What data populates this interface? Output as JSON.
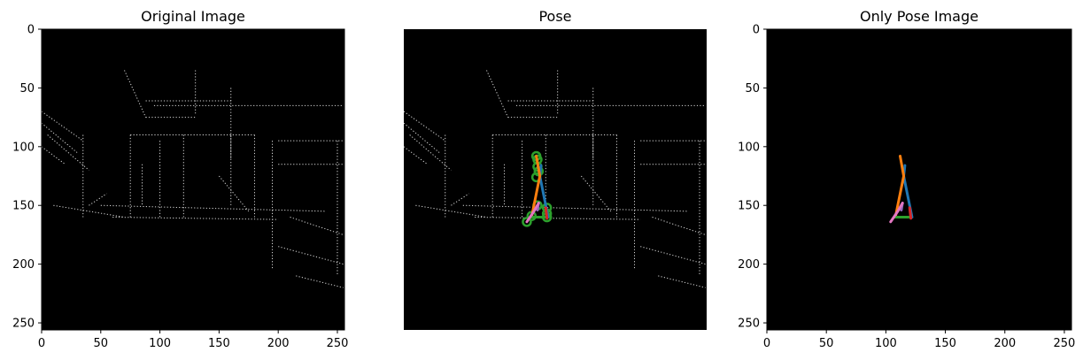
{
  "chart_data": [
    {
      "type": "image",
      "title": "Original Image",
      "xlim": [
        0,
        256
      ],
      "ylim": [
        256,
        0
      ],
      "xticks": [
        0,
        50,
        100,
        150,
        200,
        250
      ],
      "yticks": [
        0,
        50,
        100,
        150,
        200,
        250
      ],
      "show_axes": true,
      "background": "#000000",
      "image_content": "sparse white edge-detection lines on black",
      "pose_overlay": false
    },
    {
      "type": "image",
      "title": "Pose",
      "xlim": [
        0,
        256
      ],
      "ylim": [
        256,
        0
      ],
      "show_axes": false,
      "background": "#000000",
      "image_content": "sparse white edge-detection lines on black",
      "pose_overlay": true
    },
    {
      "type": "image",
      "title": "Only Pose Image",
      "xlim": [
        0,
        256
      ],
      "ylim": [
        256,
        0
      ],
      "xticks": [
        0,
        50,
        100,
        150,
        200,
        250
      ],
      "yticks": [
        0,
        50,
        100,
        150,
        200,
        250
      ],
      "show_axes": true,
      "background": "#000000",
      "image_content": "pose skeleton only",
      "pose_overlay": true
    }
  ],
  "pose": {
    "segments": [
      {
        "color": "#1f77b4",
        "points": [
          [
            115,
            125
          ],
          [
            122,
            160
          ]
        ]
      },
      {
        "color": "#1f77b4",
        "points": [
          [
            115,
            125
          ],
          [
            116,
            116
          ]
        ]
      },
      {
        "color": "#ff7f0e",
        "points": [
          [
            112,
            108
          ],
          [
            115,
            125
          ],
          [
            108,
            160
          ]
        ]
      },
      {
        "color": "#2ca02c",
        "points": [
          [
            108,
            160
          ],
          [
            121,
            160
          ]
        ]
      },
      {
        "color": "#d62728",
        "points": [
          [
            120,
            152
          ],
          [
            121,
            161
          ]
        ]
      },
      {
        "color": "#9467bd",
        "points": [
          [
            114,
            148
          ],
          [
            113,
            154
          ]
        ]
      },
      {
        "color": "#e377c2",
        "points": [
          [
            104,
            164
          ],
          [
            110,
            155
          ],
          [
            114,
            148
          ]
        ]
      }
    ],
    "joint_color": "#2ca02c",
    "joints": [
      [
        112,
        108
      ],
      [
        113,
        111
      ],
      [
        113,
        117
      ],
      [
        114,
        121
      ],
      [
        112,
        126
      ],
      [
        104,
        164
      ],
      [
        121,
        157
      ],
      [
        121,
        152
      ],
      [
        108,
        159
      ],
      [
        113,
        150
      ],
      [
        121,
        160
      ]
    ]
  }
}
